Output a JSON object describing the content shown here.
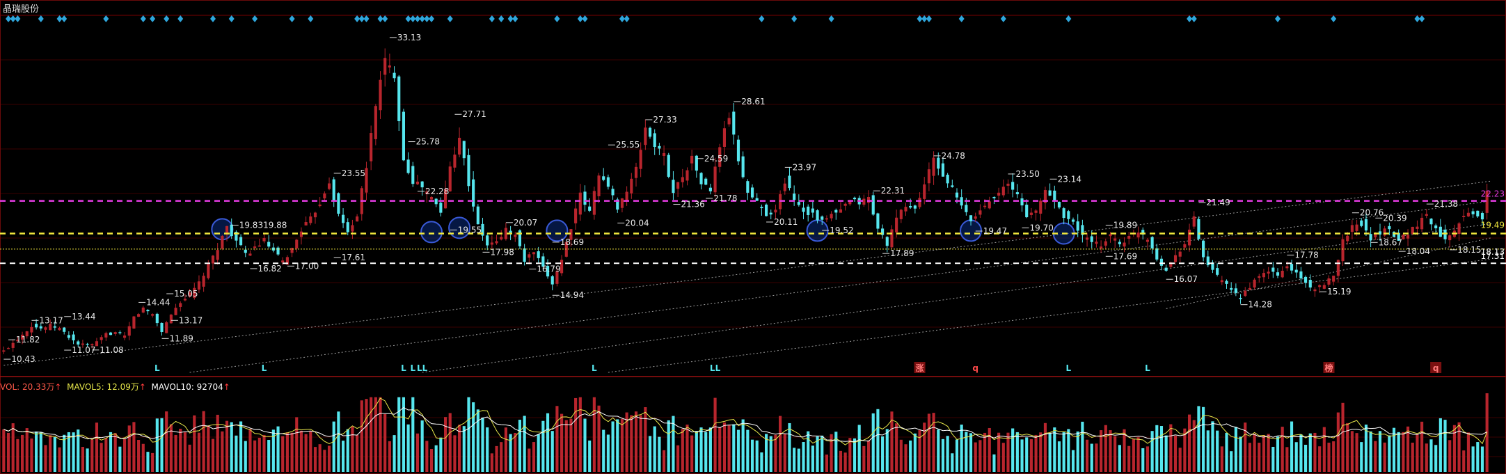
{
  "header": {
    "stock_name": "晶瑞股份"
  },
  "vol_legend": {
    "vol_label": "VOL: ",
    "vol_value": "20.33万",
    "mavol5_label": "MAVOL5: ",
    "mavol5_value": "12.09万",
    "mavol10_label": "MAVOL10: ",
    "mavol10_value": "92704",
    "arrow": "↑"
  },
  "colors": {
    "up": "#b8252d",
    "down": "#56e6ee",
    "magenta_line": "#e23be0",
    "yellow_line": "#f0e63c",
    "white_line": "#ffffff",
    "marker": "#2ea6dc",
    "grid": "#3a0000"
  },
  "chart_data": [
    {
      "type": "candlestick",
      "y_axis": "price",
      "ylim": [
        9.5,
        34.5
      ],
      "grid": true,
      "price_labels": [
        {
          "i": 0,
          "price": 10.43,
          "text": "10.43"
        },
        {
          "i": 1,
          "price": 11.8,
          "text": "11.82"
        },
        {
          "i": 6,
          "price": 13.17,
          "text": "13.17"
        },
        {
          "i": 13,
          "price": 13.44,
          "text": "13.44"
        },
        {
          "i": 13,
          "price": 11.07,
          "text": "11.07"
        },
        {
          "i": 19,
          "price": 11.08,
          "text": "11.08"
        },
        {
          "i": 29,
          "price": 14.44,
          "text": "14.44"
        },
        {
          "i": 35,
          "price": 15.05,
          "text": "15.05"
        },
        {
          "i": 36,
          "price": 13.17,
          "text": "13.17"
        },
        {
          "i": 34,
          "price": 11.89,
          "text": "11.89"
        },
        {
          "i": 49,
          "price": 19.89,
          "text": "19.8319.88"
        },
        {
          "i": 53,
          "price": 16.82,
          "text": "16.82"
        },
        {
          "i": 61,
          "price": 17.0,
          "text": "17.00"
        },
        {
          "i": 71,
          "price": 23.55,
          "text": "23.55"
        },
        {
          "i": 71,
          "price": 17.61,
          "text": "17.61"
        },
        {
          "i": 83,
          "price": 33.13,
          "text": "33.13"
        },
        {
          "i": 87,
          "price": 25.78,
          "text": "25.78"
        },
        {
          "i": 89,
          "price": 22.28,
          "text": "22.28"
        },
        {
          "i": 96,
          "price": 19.55,
          "text": "19.55"
        },
        {
          "i": 97,
          "price": 27.71,
          "text": "27.71"
        },
        {
          "i": 103,
          "price": 17.98,
          "text": "17.98"
        },
        {
          "i": 108,
          "price": 20.07,
          "text": "20.07"
        },
        {
          "i": 113,
          "price": 16.79,
          "text": "16.79"
        },
        {
          "i": 118,
          "price": 18.69,
          "text": "18.69"
        },
        {
          "i": 118,
          "price": 14.94,
          "text": "14.94"
        },
        {
          "i": 130,
          "price": 25.55,
          "text": "25.55"
        },
        {
          "i": 132,
          "price": 20.04,
          "text": "20.04"
        },
        {
          "i": 138,
          "price": 27.33,
          "text": "27.33"
        },
        {
          "i": 144,
          "price": 21.36,
          "text": "21.36"
        },
        {
          "i": 149,
          "price": 24.59,
          "text": "24.59"
        },
        {
          "i": 151,
          "price": 21.78,
          "text": "21.78"
        },
        {
          "i": 157,
          "price": 28.61,
          "text": "28.61"
        },
        {
          "i": 164,
          "price": 20.11,
          "text": "20.11"
        },
        {
          "i": 168,
          "price": 23.97,
          "text": "23.97"
        },
        {
          "i": 176,
          "price": 19.52,
          "text": "19.52"
        },
        {
          "i": 187,
          "price": 22.31,
          "text": "22.31"
        },
        {
          "i": 189,
          "price": 17.89,
          "text": "17.89"
        },
        {
          "i": 200,
          "price": 24.78,
          "text": "24.78"
        },
        {
          "i": 209,
          "price": 19.47,
          "text": "19.47"
        },
        {
          "i": 216,
          "price": 23.5,
          "text": "23.50"
        },
        {
          "i": 219,
          "price": 19.7,
          "text": "19.70"
        },
        {
          "i": 225,
          "price": 23.14,
          "text": "23.14"
        },
        {
          "i": 237,
          "price": 19.89,
          "text": "19.89"
        },
        {
          "i": 237,
          "price": 17.69,
          "text": "17.69"
        },
        {
          "i": 250,
          "price": 16.07,
          "text": "16.07"
        },
        {
          "i": 257,
          "price": 21.49,
          "text": "21.49"
        },
        {
          "i": 266,
          "price": 14.28,
          "text": "14.28"
        },
        {
          "i": 276,
          "price": 17.78,
          "text": "17.78"
        },
        {
          "i": 283,
          "price": 15.19,
          "text": "15.19"
        },
        {
          "i": 290,
          "price": 20.76,
          "text": "20.76"
        },
        {
          "i": 294,
          "price": 18.67,
          "text": "18.67"
        },
        {
          "i": 295,
          "price": 20.39,
          "text": "20.39"
        },
        {
          "i": 300,
          "price": 18.04,
          "text": "18.04"
        },
        {
          "i": 306,
          "price": 21.38,
          "text": "21.38"
        },
        {
          "i": 311,
          "price": 18.15,
          "text": "18.15"
        }
      ],
      "horizontal_lines": [
        {
          "price": 21.6,
          "style": "magenta-dashed"
        },
        {
          "price": 19.3,
          "style": "yellow-dashed"
        },
        {
          "price": 18.2,
          "style": "yellow-dotted"
        },
        {
          "price": 17.2,
          "style": "white-dashed"
        }
      ],
      "level_labels": [
        {
          "price": 22.1,
          "text": "22.23",
          "color": "#e23be0"
        },
        {
          "price": 19.9,
          "text": "19.49",
          "color": "#f0e63c"
        },
        {
          "price": 18.0,
          "text": "18.13",
          "color": "#ffffff"
        },
        {
          "price": 17.7,
          "text": "17.31",
          "color": "#ffffff"
        }
      ],
      "trend_lines": [
        {
          "from": [
            0,
            10.0
          ],
          "to": [
            320,
            23.0
          ]
        },
        {
          "from": [
            40,
            9.5
          ],
          "to": [
            320,
            21.6
          ]
        },
        {
          "from": [
            90,
            9.5
          ],
          "to": [
            320,
            20.0
          ]
        },
        {
          "from": [
            130,
            9.5
          ],
          "to": [
            320,
            17.5
          ]
        },
        {
          "from": [
            250,
            14.0
          ],
          "to": [
            320,
            19.0
          ]
        }
      ],
      "circles": [
        {
          "i": 47,
          "price": 19.6
        },
        {
          "i": 92,
          "price": 19.4
        },
        {
          "i": 98,
          "price": 19.7
        },
        {
          "i": 119,
          "price": 19.5
        },
        {
          "i": 175,
          "price": 19.5
        },
        {
          "i": 208,
          "price": 19.5
        },
        {
          "i": 228,
          "price": 19.3
        }
      ],
      "top_markers": [
        1,
        2,
        3,
        8,
        12,
        13,
        22,
        30,
        32,
        35,
        38,
        45,
        49,
        54,
        62,
        66,
        76,
        77,
        78,
        81,
        82,
        87,
        88,
        89,
        90,
        91,
        92,
        96,
        105,
        107,
        109,
        110,
        119,
        124,
        125,
        133,
        134,
        163,
        170,
        178,
        197,
        198,
        199,
        206,
        215,
        229,
        255,
        256,
        274,
        286,
        304,
        305
      ],
      "bottom_tags": [
        {
          "i": 33,
          "text": "L",
          "color": "#56e6ee"
        },
        {
          "i": 56,
          "text": "L",
          "color": "#56e6ee"
        },
        {
          "i": 86,
          "text": "L",
          "color": "#56e6ee"
        },
        {
          "i": 88,
          "text": "L",
          "color": "#56e6ee"
        },
        {
          "i": 90,
          "text": "LL",
          "color": "#56e6ee"
        },
        {
          "i": 127,
          "text": "L",
          "color": "#56e6ee"
        },
        {
          "i": 153,
          "text": "LL",
          "color": "#56e6ee"
        },
        {
          "i": 197,
          "text": "涨",
          "color": "#ff7a7a",
          "boxed": true
        },
        {
          "i": 209,
          "text": "q",
          "color": "#ff4a4a"
        },
        {
          "i": 229,
          "text": "L",
          "color": "#56e6ee"
        },
        {
          "i": 246,
          "text": "L",
          "color": "#56e6ee"
        },
        {
          "i": 285,
          "text": "榜",
          "color": "#ff7a7a",
          "boxed": true
        },
        {
          "i": 308,
          "text": "q",
          "color": "#ff7a7a",
          "boxed": true
        }
      ],
      "anchors": [
        [
          0,
          11.0
        ],
        [
          2,
          11.6
        ],
        [
          4,
          12.2
        ],
        [
          6,
          12.8
        ],
        [
          8,
          12.6
        ],
        [
          10,
          12.8
        ],
        [
          12,
          12.6
        ],
        [
          14,
          12.0
        ],
        [
          16,
          11.5
        ],
        [
          18,
          11.4
        ],
        [
          20,
          11.6
        ],
        [
          22,
          12.2
        ],
        [
          24,
          12.3
        ],
        [
          26,
          12.0
        ],
        [
          28,
          13.4
        ],
        [
          30,
          14.0
        ],
        [
          32,
          13.6
        ],
        [
          34,
          12.4
        ],
        [
          36,
          13.6
        ],
        [
          38,
          14.5
        ],
        [
          40,
          15.0
        ],
        [
          42,
          15.8
        ],
        [
          44,
          17.0
        ],
        [
          46,
          18.3
        ],
        [
          48,
          19.8
        ],
        [
          50,
          18.8
        ],
        [
          52,
          17.8
        ],
        [
          54,
          18.3
        ],
        [
          56,
          18.8
        ],
        [
          58,
          18.0
        ],
        [
          60,
          17.3
        ],
        [
          62,
          18.2
        ],
        [
          64,
          19.6
        ],
        [
          66,
          20.3
        ],
        [
          68,
          21.5
        ],
        [
          70,
          23.0
        ],
        [
          72,
          20.6
        ],
        [
          74,
          19.4
        ],
        [
          76,
          20.6
        ],
        [
          78,
          24.0
        ],
        [
          80,
          28.5
        ],
        [
          82,
          31.5
        ],
        [
          84,
          30.5
        ],
        [
          86,
          24.5
        ],
        [
          88,
          23.0
        ],
        [
          90,
          22.6
        ],
        [
          92,
          21.8
        ],
        [
          94,
          20.8
        ],
        [
          96,
          24.0
        ],
        [
          98,
          26.2
        ],
        [
          100,
          22.8
        ],
        [
          102,
          19.8
        ],
        [
          104,
          18.5
        ],
        [
          106,
          18.7
        ],
        [
          108,
          19.6
        ],
        [
          110,
          19.2
        ],
        [
          112,
          17.4
        ],
        [
          114,
          18.0
        ],
        [
          116,
          16.8
        ],
        [
          118,
          15.8
        ],
        [
          120,
          17.5
        ],
        [
          122,
          19.8
        ],
        [
          124,
          22.0
        ],
        [
          126,
          20.8
        ],
        [
          128,
          23.6
        ],
        [
          130,
          22.5
        ],
        [
          132,
          21.2
        ],
        [
          134,
          22.3
        ],
        [
          136,
          23.8
        ],
        [
          138,
          26.8
        ],
        [
          140,
          25.5
        ],
        [
          142,
          24.8
        ],
        [
          144,
          22.2
        ],
        [
          146,
          23.4
        ],
        [
          148,
          24.6
        ],
        [
          150,
          22.9
        ],
        [
          152,
          22.3
        ],
        [
          154,
          25.5
        ],
        [
          156,
          27.6
        ],
        [
          158,
          24.5
        ],
        [
          160,
          22.2
        ],
        [
          162,
          21.5
        ],
        [
          164,
          20.7
        ],
        [
          166,
          20.9
        ],
        [
          168,
          23.0
        ],
        [
          170,
          21.8
        ],
        [
          172,
          20.9
        ],
        [
          174,
          20.7
        ],
        [
          176,
          20.1
        ],
        [
          178,
          20.6
        ],
        [
          180,
          20.9
        ],
        [
          182,
          21.6
        ],
        [
          184,
          21.5
        ],
        [
          186,
          21.8
        ],
        [
          188,
          19.6
        ],
        [
          190,
          18.6
        ],
        [
          192,
          20.3
        ],
        [
          194,
          21.3
        ],
        [
          196,
          21.0
        ],
        [
          198,
          22.8
        ],
        [
          200,
          24.5
        ],
        [
          202,
          23.4
        ],
        [
          204,
          22.4
        ],
        [
          206,
          21.2
        ],
        [
          208,
          20.2
        ],
        [
          210,
          20.9
        ],
        [
          212,
          21.7
        ],
        [
          214,
          22.3
        ],
        [
          216,
          22.7
        ],
        [
          218,
          22.0
        ],
        [
          220,
          20.6
        ],
        [
          222,
          20.8
        ],
        [
          224,
          22.4
        ],
        [
          226,
          21.6
        ],
        [
          228,
          20.6
        ],
        [
          230,
          20.0
        ],
        [
          232,
          19.2
        ],
        [
          234,
          18.6
        ],
        [
          236,
          18.5
        ],
        [
          238,
          19.2
        ],
        [
          240,
          18.6
        ],
        [
          242,
          19.0
        ],
        [
          244,
          19.5
        ],
        [
          246,
          19.0
        ],
        [
          248,
          17.6
        ],
        [
          250,
          16.7
        ],
        [
          252,
          17.8
        ],
        [
          254,
          18.6
        ],
        [
          256,
          20.4
        ],
        [
          258,
          17.6
        ],
        [
          260,
          16.6
        ],
        [
          262,
          16.0
        ],
        [
          264,
          15.2
        ],
        [
          266,
          14.8
        ],
        [
          268,
          15.6
        ],
        [
          270,
          16.2
        ],
        [
          272,
          16.7
        ],
        [
          274,
          16.3
        ],
        [
          276,
          17.0
        ],
        [
          278,
          16.5
        ],
        [
          280,
          15.8
        ],
        [
          282,
          15.4
        ],
        [
          284,
          15.6
        ],
        [
          286,
          16.4
        ],
        [
          288,
          18.8
        ],
        [
          290,
          19.8
        ],
        [
          292,
          20.0
        ],
        [
          294,
          19.0
        ],
        [
          296,
          19.4
        ],
        [
          298,
          19.7
        ],
        [
          300,
          18.8
        ],
        [
          302,
          19.4
        ],
        [
          304,
          19.9
        ],
        [
          306,
          20.7
        ],
        [
          308,
          19.5
        ],
        [
          310,
          19.0
        ],
        [
          312,
          19.6
        ],
        [
          314,
          20.7
        ],
        [
          316,
          20.6
        ],
        [
          318,
          20.4
        ],
        [
          319,
          22.4
        ]
      ]
    },
    {
      "type": "bar",
      "y_axis": "volume",
      "series": [
        "volume",
        "mavol5",
        "mavol10"
      ],
      "last_value": 203300
    }
  ]
}
